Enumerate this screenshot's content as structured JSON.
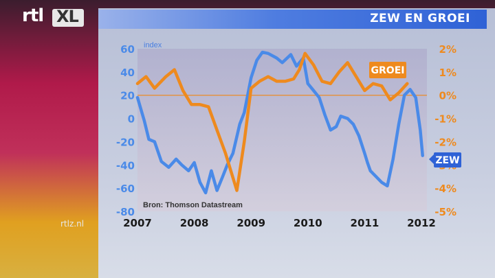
{
  "header": {
    "title": "ZEW EN GROEI"
  },
  "logo": {
    "text_left": "rtl",
    "text_box": "XL"
  },
  "footer": {
    "site": "rtlz.nl"
  },
  "chart_data": {
    "type": "line",
    "title": "ZEW EN GROEI",
    "ylabel_left": "index",
    "source": "Bron: Thomson Datastream",
    "x_ticks": [
      "2007",
      "2008",
      "2009",
      "2010",
      "2011",
      "2012"
    ],
    "xlim": [
      2007.0,
      2012.0
    ],
    "y_left": {
      "lim": [
        -80,
        60
      ],
      "ticks": [
        "60",
        "40",
        "20",
        "0",
        "-20",
        "-40",
        "-60",
        "-80"
      ]
    },
    "y_right": {
      "lim": [
        -5,
        2
      ],
      "ticks": [
        "2%",
        "1%",
        "0%",
        "-1%",
        "-2%",
        "-3%",
        "-4%",
        "-5%"
      ]
    },
    "colors": {
      "zew": "#4a8ae8",
      "groei": "#ee8a1e",
      "zero_line": "#ee8a1e"
    },
    "series": [
      {
        "name": "ZEW",
        "axis": "left",
        "x": [
          2007.0,
          2007.12,
          2007.2,
          2007.3,
          2007.42,
          2007.55,
          2007.68,
          2007.78,
          2007.9,
          2008.0,
          2008.1,
          2008.2,
          2008.3,
          2008.4,
          2008.5,
          2008.58,
          2008.68,
          2008.8,
          2008.88,
          2009.0,
          2009.1,
          2009.2,
          2009.3,
          2009.45,
          2009.55,
          2009.7,
          2009.8,
          2009.92,
          2010.0,
          2010.1,
          2010.2,
          2010.3,
          2010.4,
          2010.5,
          2010.58,
          2010.7,
          2010.8,
          2010.9,
          2011.0,
          2011.05,
          2011.1,
          2011.2,
          2011.3,
          2011.4,
          2011.5,
          2011.6,
          2011.7,
          2011.8,
          2011.9,
          2011.98,
          2012.02
        ],
        "values": [
          18,
          -2,
          -18,
          -20,
          -37,
          -42,
          -35,
          -40,
          -45,
          -38,
          -55,
          -64,
          -45,
          -62,
          -50,
          -40,
          -30,
          -5,
          5,
          35,
          50,
          57,
          56,
          52,
          48,
          55,
          45,
          52,
          30,
          24,
          18,
          3,
          -10,
          -7,
          2,
          0,
          -5,
          -15,
          -30,
          -38,
          -45,
          -50,
          -55,
          -58,
          -35,
          -5,
          20,
          25,
          18,
          -10,
          -32
        ]
      },
      {
        "name": "GROEI",
        "axis": "right",
        "x": [
          2007.0,
          2007.15,
          2007.3,
          2007.5,
          2007.65,
          2007.8,
          2007.95,
          2008.1,
          2008.25,
          2008.4,
          2008.55,
          2008.75,
          2008.88,
          2009.0,
          2009.15,
          2009.3,
          2009.45,
          2009.6,
          2009.75,
          2009.85,
          2009.95,
          2010.1,
          2010.25,
          2010.4,
          2010.55,
          2010.7,
          2010.85,
          2011.0,
          2011.15,
          2011.3,
          2011.45,
          2011.6,
          2011.75
        ],
        "values": [
          0.5,
          0.8,
          0.3,
          0.8,
          1.1,
          0.2,
          -0.4,
          -0.4,
          -0.5,
          -1.5,
          -2.5,
          -4.1,
          -2.0,
          0.3,
          0.6,
          0.8,
          0.6,
          0.6,
          0.7,
          1.1,
          1.8,
          1.3,
          0.6,
          0.5,
          1.0,
          1.4,
          0.8,
          0.2,
          0.5,
          0.4,
          -0.2,
          0.1,
          0.5
        ]
      }
    ],
    "series_labels": [
      "GROEI",
      "ZEW"
    ],
    "grid": false
  }
}
